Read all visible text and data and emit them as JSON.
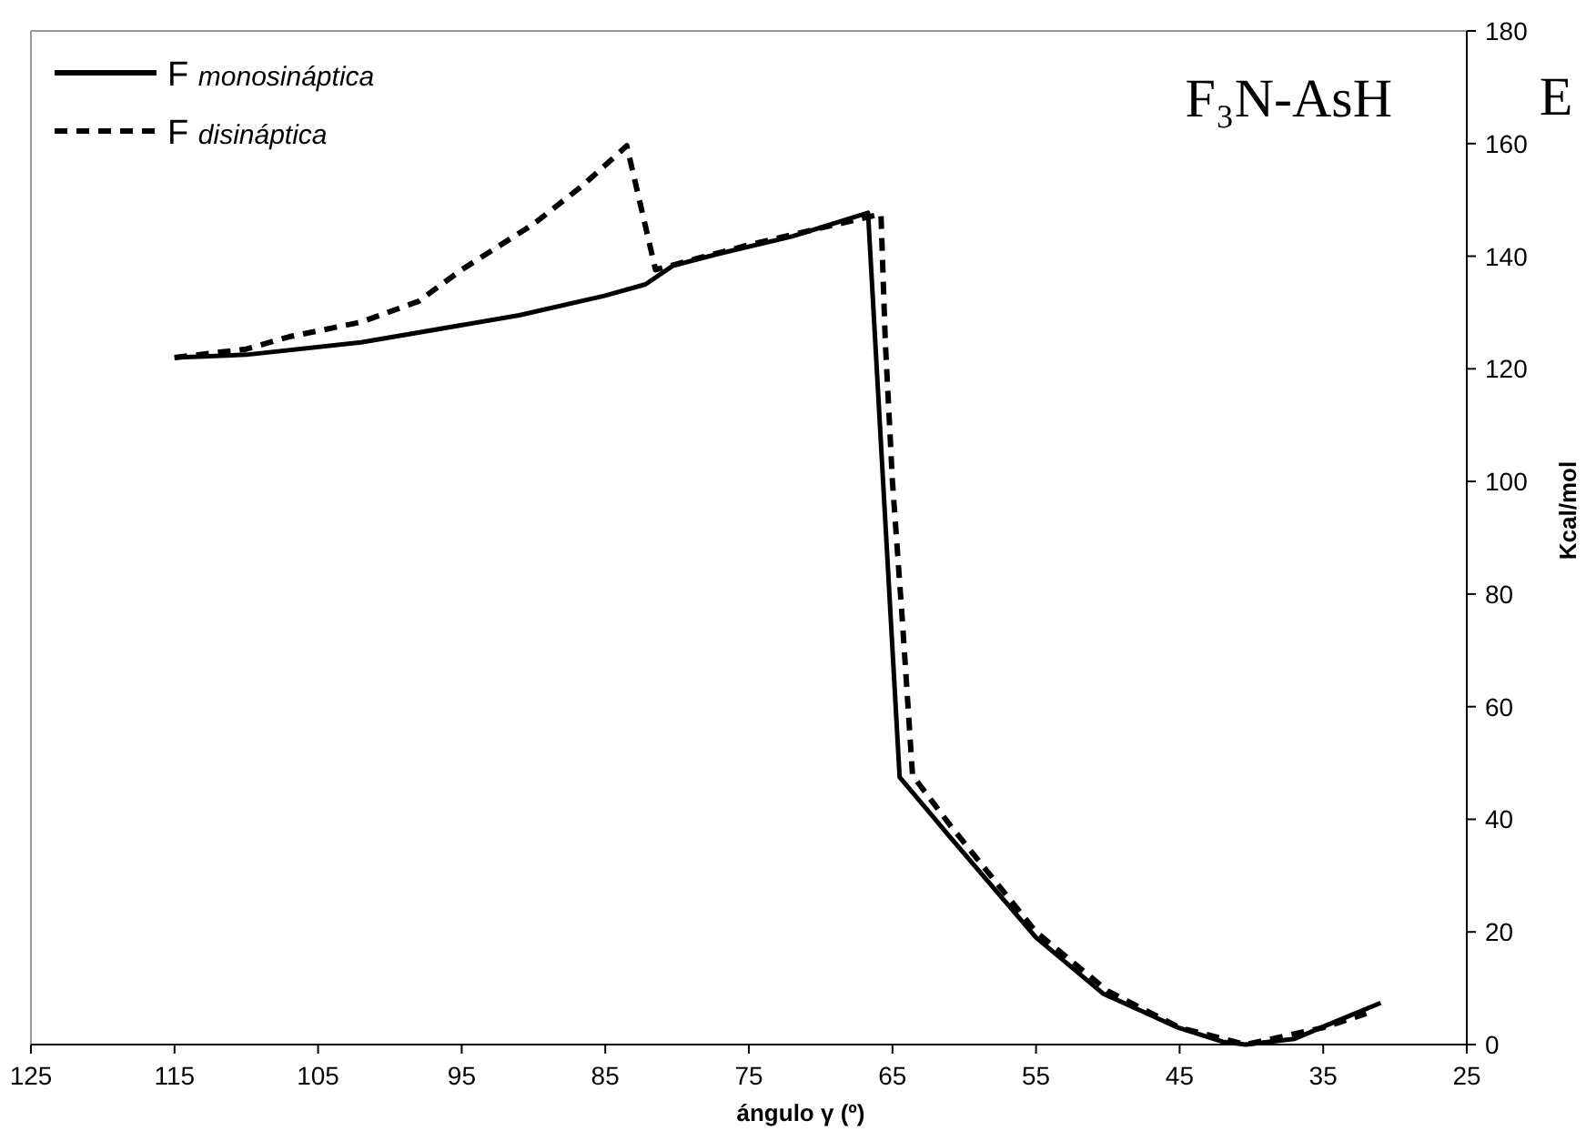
{
  "chart_data": {
    "type": "line",
    "title": "F₃N-AsH",
    "xlabel": "ángulo γ (º)",
    "ylabel": "Kcal/mol",
    "annotations": [
      "E"
    ],
    "xlim": [
      125,
      25
    ],
    "xticks": [
      125,
      115,
      105,
      95,
      85,
      75,
      65,
      55,
      45,
      35,
      25
    ],
    "ylim": [
      0,
      180
    ],
    "yticks": [
      0,
      20,
      40,
      60,
      80,
      100,
      120,
      140,
      160,
      180
    ],
    "grid": false,
    "legend": "top left",
    "series": [
      {
        "name": "F monosináptica",
        "color": "#000000",
        "line_style": "solid",
        "x": [
          115,
          110,
          102,
          91,
          85,
          82.2,
          80.3,
          77,
          72,
          66.7,
          64.5,
          61.1,
          55,
          50.3,
          45.1,
          42,
          40.4,
          37,
          34.7,
          31
        ],
        "values": [
          122,
          122.5,
          124.7,
          129.5,
          133,
          135,
          138.3,
          140.5,
          143.5,
          147.7,
          47.5,
          37.2,
          19,
          9,
          3,
          0.5,
          0,
          1,
          3.5,
          7.4
        ]
      },
      {
        "name": "F disináptica",
        "color": "#000000",
        "line_style": "dashed",
        "x": [
          115,
          110,
          107,
          102,
          98,
          95,
          90,
          86.6,
          83.5,
          81.5,
          78,
          75,
          70,
          65.8,
          65.5,
          65,
          64.3,
          63.6,
          61,
          55,
          50,
          45,
          40.4,
          35,
          32
        ],
        "values": [
          122,
          123.5,
          125.7,
          128.3,
          132,
          137.6,
          145.7,
          152.5,
          159.6,
          137.6,
          140,
          142,
          145,
          147.5,
          125,
          100,
          75,
          47.8,
          39,
          20,
          9.5,
          3,
          0,
          3,
          5.5
        ]
      }
    ]
  }
}
